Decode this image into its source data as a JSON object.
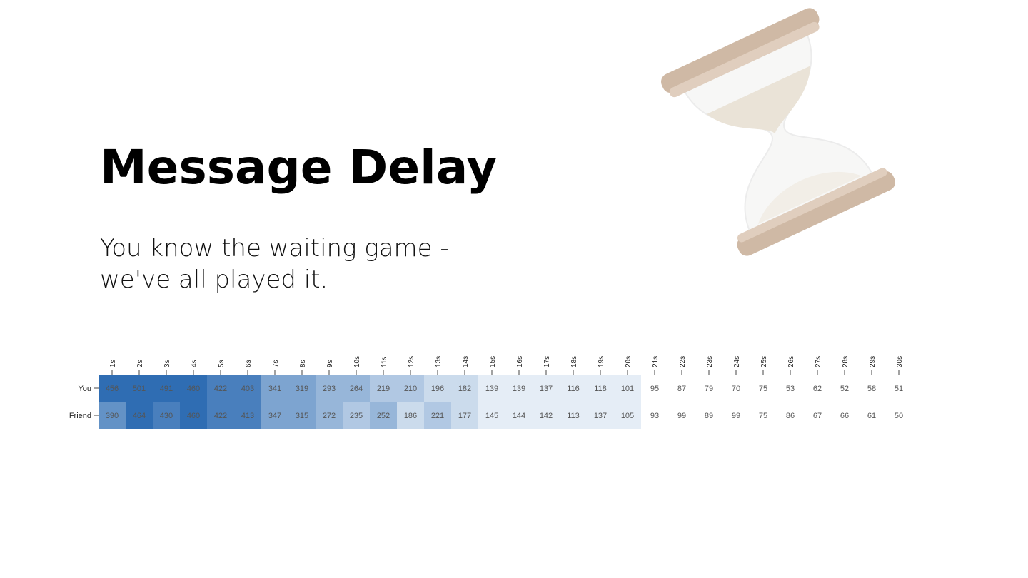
{
  "slide": {
    "title": "Message Delay",
    "subtitle_line1": "You know the waiting game -",
    "subtitle_line2": "we've all played it.",
    "image": "hourglass"
  },
  "chart_data": {
    "type": "heatmap",
    "x_categories": [
      "1s",
      "2s",
      "3s",
      "4s",
      "5s",
      "6s",
      "7s",
      "8s",
      "9s",
      "10s",
      "11s",
      "12s",
      "13s",
      "14s",
      "15s",
      "16s",
      "17s",
      "18s",
      "19s",
      "20s",
      "21s",
      "22s",
      "23s",
      "24s",
      "25s",
      "26s",
      "27s",
      "28s",
      "29s",
      "30s"
    ],
    "y_categories": [
      "You",
      "Friend"
    ],
    "values": [
      [
        456,
        501,
        491,
        460,
        422,
        403,
        341,
        319,
        293,
        264,
        219,
        210,
        196,
        182,
        139,
        139,
        137,
        116,
        118,
        101,
        95,
        87,
        79,
        70,
        75,
        53,
        62,
        52,
        58,
        51
      ],
      [
        390,
        464,
        430,
        460,
        422,
        413,
        347,
        315,
        272,
        235,
        252,
        186,
        221,
        177,
        145,
        144,
        142,
        113,
        137,
        105,
        93,
        99,
        89,
        99,
        75,
        86,
        67,
        66,
        61,
        50
      ]
    ],
    "color_scale": {
      "low": "#ffffff",
      "high": "#2f6db3"
    },
    "x_axis_position": "top",
    "cell_labels": true
  }
}
